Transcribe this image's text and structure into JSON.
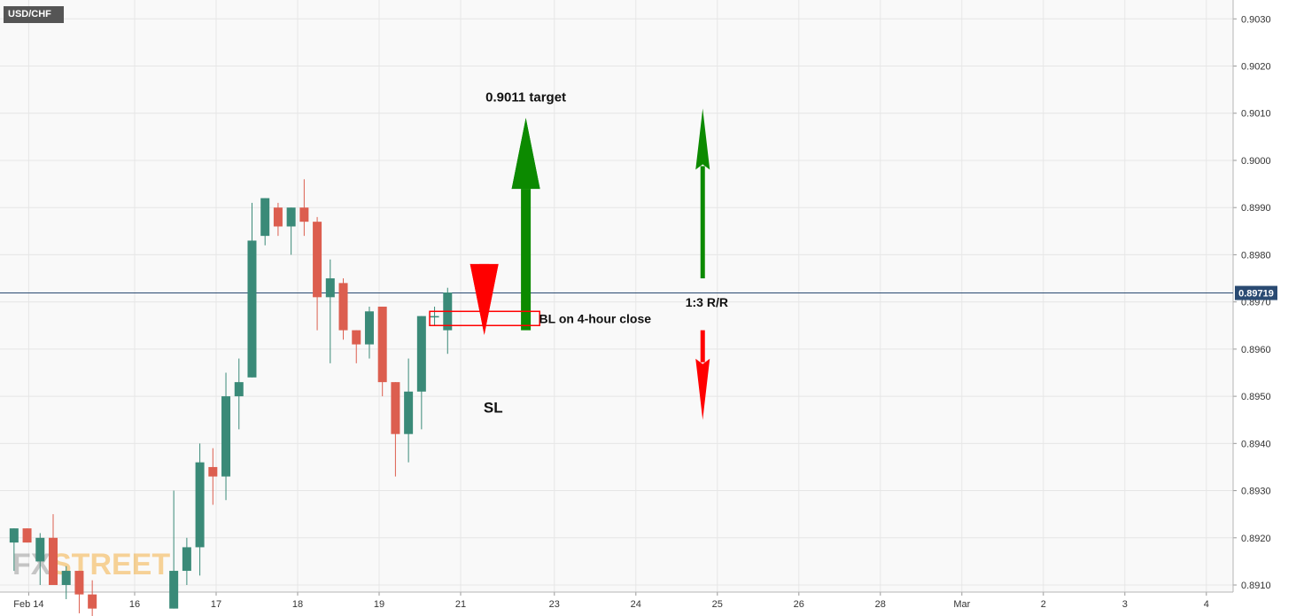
{
  "header": {
    "symbol": "USD/CHF"
  },
  "watermark": {
    "part1": "FX",
    "part2": "STREET"
  },
  "colors": {
    "bull": "#3a8a78",
    "bear": "#dc5e4f",
    "current_price_line": "#2a4a72",
    "target_arrow": "#0c8a00",
    "stop_arrow": "#ff0000",
    "grid": "#e6e6e6",
    "plot_bg": "#f9f9f9"
  },
  "chart_data": {
    "type": "candlestick",
    "y_range": [
      0.89085,
      0.9034
    ],
    "y_ticks": [
      "0.8910",
      "0.8920",
      "0.8930",
      "0.8940",
      "0.8950",
      "0.8960",
      "0.8970",
      "0.8980",
      "0.8990",
      "0.9000",
      "0.9010",
      "0.9020",
      "0.9030"
    ],
    "x_range": [
      0,
      15.1
    ],
    "x_ticks": [
      {
        "label": "Feb 14",
        "x": 0.2
      },
      {
        "label": "16",
        "x": 1.5
      },
      {
        "label": "17",
        "x": 2.5
      },
      {
        "label": "18",
        "x": 3.5
      },
      {
        "label": "19",
        "x": 4.5
      },
      {
        "label": "21",
        "x": 5.5
      },
      {
        "label": "23",
        "x": 6.65
      },
      {
        "label": "24",
        "x": 7.65
      },
      {
        "label": "25",
        "x": 8.65
      },
      {
        "label": "26",
        "x": 9.65
      },
      {
        "label": "28",
        "x": 10.65
      },
      {
        "label": "Mar",
        "x": 11.65
      },
      {
        "label": "2",
        "x": 12.65
      },
      {
        "label": "3",
        "x": 13.65
      },
      {
        "label": "4",
        "x": 14.65
      }
    ],
    "candles": [
      {
        "x": 0.02,
        "o": 0.8919,
        "h": 0.8922,
        "l": 0.8913,
        "c": 0.8922
      },
      {
        "x": 0.18,
        "o": 0.8922,
        "h": 0.8922,
        "l": 0.8919,
        "c": 0.8919
      },
      {
        "x": 0.34,
        "o": 0.8915,
        "h": 0.8921,
        "l": 0.891,
        "c": 0.892
      },
      {
        "x": 0.5,
        "o": 0.892,
        "h": 0.8925,
        "l": 0.891,
        "c": 0.891
      },
      {
        "x": 0.66,
        "o": 0.891,
        "h": 0.8914,
        "l": 0.8907,
        "c": 0.8913
      },
      {
        "x": 0.82,
        "o": 0.8913,
        "h": 0.8913,
        "l": 0.8904,
        "c": 0.8908
      },
      {
        "x": 0.98,
        "o": 0.8908,
        "h": 0.8911,
        "l": 0.8902,
        "c": 0.8905
      },
      {
        "x": 1.98,
        "o": 0.8905,
        "h": 0.893,
        "l": 0.8905,
        "c": 0.8913
      },
      {
        "x": 2.14,
        "o": 0.8913,
        "h": 0.892,
        "l": 0.891,
        "c": 0.8918
      },
      {
        "x": 2.3,
        "o": 0.8918,
        "h": 0.894,
        "l": 0.8912,
        "c": 0.8936
      },
      {
        "x": 2.46,
        "o": 0.8935,
        "h": 0.8939,
        "l": 0.8927,
        "c": 0.8933
      },
      {
        "x": 2.62,
        "o": 0.8933,
        "h": 0.8955,
        "l": 0.8928,
        "c": 0.895
      },
      {
        "x": 2.78,
        "o": 0.895,
        "h": 0.8958,
        "l": 0.8943,
        "c": 0.8953
      },
      {
        "x": 2.94,
        "o": 0.8954,
        "h": 0.8991,
        "l": 0.8954,
        "c": 0.8983
      },
      {
        "x": 3.1,
        "o": 0.8984,
        "h": 0.8992,
        "l": 0.8982,
        "c": 0.8992
      },
      {
        "x": 3.26,
        "o": 0.899,
        "h": 0.8991,
        "l": 0.8984,
        "c": 0.8986
      },
      {
        "x": 3.42,
        "o": 0.8986,
        "h": 0.899,
        "l": 0.898,
        "c": 0.899
      },
      {
        "x": 3.58,
        "o": 0.899,
        "h": 0.8996,
        "l": 0.8984,
        "c": 0.8987
      },
      {
        "x": 3.74,
        "o": 0.8987,
        "h": 0.8988,
        "l": 0.8964,
        "c": 0.8971
      },
      {
        "x": 3.9,
        "o": 0.8971,
        "h": 0.8979,
        "l": 0.8957,
        "c": 0.8975
      },
      {
        "x": 4.06,
        "o": 0.8974,
        "h": 0.8975,
        "l": 0.8962,
        "c": 0.8964
      },
      {
        "x": 4.22,
        "o": 0.8964,
        "h": 0.8964,
        "l": 0.8957,
        "c": 0.8961
      },
      {
        "x": 4.38,
        "o": 0.8961,
        "h": 0.8969,
        "l": 0.8958,
        "c": 0.8968
      },
      {
        "x": 4.54,
        "o": 0.8969,
        "h": 0.8969,
        "l": 0.895,
        "c": 0.8953
      },
      {
        "x": 4.7,
        "o": 0.8953,
        "h": 0.8953,
        "l": 0.8933,
        "c": 0.8942
      },
      {
        "x": 4.86,
        "o": 0.8942,
        "h": 0.8958,
        "l": 0.8936,
        "c": 0.8951
      },
      {
        "x": 5.02,
        "o": 0.8951,
        "h": 0.8967,
        "l": 0.8943,
        "c": 0.8967
      },
      {
        "x": 5.18,
        "o": 0.8967,
        "h": 0.8969,
        "l": 0.8965,
        "c": 0.8967
      },
      {
        "x": 5.34,
        "o": 0.8964,
        "h": 0.8973,
        "l": 0.8959,
        "c": 0.8972
      }
    ],
    "current_price": {
      "value": 0.89719,
      "label": "0.89719"
    },
    "annotations": [
      {
        "kind": "arrow",
        "direction": "up",
        "x": 6.3,
        "y_from": 0.8964,
        "y_to": 0.9009,
        "color": "target",
        "bold": true
      },
      {
        "kind": "text",
        "text": "0.9011 target",
        "x": 6.3,
        "y": 0.90125
      },
      {
        "kind": "rect",
        "x_from": 5.12,
        "x_to": 6.47,
        "y_from": 0.8968,
        "y_to": 0.8965,
        "color": "stop"
      },
      {
        "kind": "text",
        "text": "BL on 4-hour close",
        "x": 7.15,
        "y": 0.89655
      },
      {
        "kind": "arrow",
        "direction": "down",
        "x": 5.79,
        "y_from": 0.8971,
        "y_to": 0.8963,
        "color": "stop",
        "bold": true
      },
      {
        "kind": "text",
        "text": "SL",
        "x": 5.9,
        "y": 0.89465
      },
      {
        "kind": "arrow",
        "direction": "up",
        "x": 8.47,
        "y_from": 0.8975,
        "y_to": 0.9011,
        "color": "target",
        "bold": false
      },
      {
        "kind": "text",
        "text": "1:3 R/R",
        "x": 8.52,
        "y": 0.8969
      },
      {
        "kind": "arrow",
        "direction": "down",
        "x": 8.47,
        "y_from": 0.8964,
        "y_to": 0.8945,
        "color": "stop",
        "bold": false
      }
    ]
  }
}
